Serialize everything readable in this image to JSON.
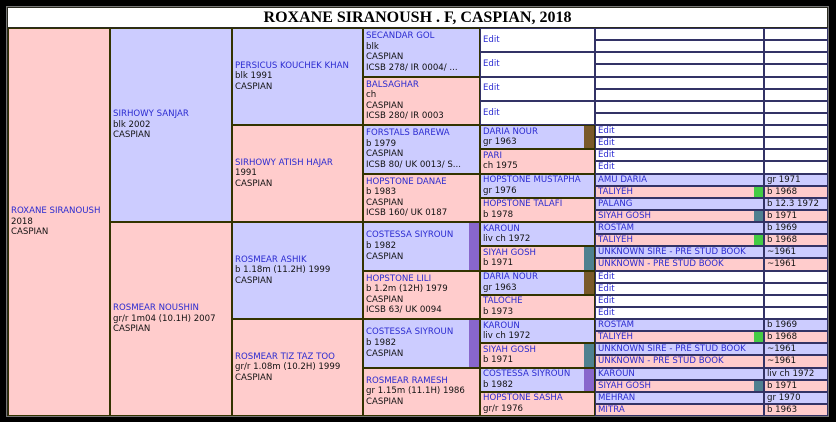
{
  "title": "ROXANE SIRANOUSH . F, CASPIAN, 2018",
  "colors": {
    "sire": "#ccccff",
    "dam": "#ffcccc",
    "name_text": "#2a2ad0",
    "dup_purple": "#8866cc",
    "dup_brown": "#7a5a2a",
    "dup_teal": "#4f8090",
    "dup_green": "#44cc44"
  },
  "edit_label": "Edit",
  "gen1": [
    {
      "name": "ROXANE SIRANOUSH",
      "lines": [
        "2018",
        "CASPIAN"
      ]
    }
  ],
  "gen2": [
    {
      "name": "SIRHOWY SANJAR",
      "lines": [
        "blk 2002",
        "CASPIAN"
      ]
    },
    {
      "name": "ROSMEAR NOUSHIN",
      "lines": [
        "gr/r 1m04 (10.1H) 2007",
        "CASPIAN"
      ]
    }
  ],
  "gen3": [
    {
      "name": "PERSICUS KOUCHEK KHAN",
      "lines": [
        "blk 1991",
        "CASPIAN"
      ]
    },
    {
      "name": "SIRHOWY ATISH HAJAR",
      "lines": [
        "1991",
        "CASPIAN"
      ]
    },
    {
      "name": "ROSMEAR ASHIK",
      "lines": [
        "b 1.18m (11.2H) 1999",
        "CASPIAN"
      ]
    },
    {
      "name": "ROSMEAR TIZ TAZ TOO",
      "lines": [
        "gr/r 1.08m (10.2H) 1999",
        "CASPIAN"
      ]
    }
  ],
  "gen4": [
    {
      "name": "SECANDAR GOL",
      "lines": [
        "blk",
        "CASPIAN",
        "ICSB 278/ IR 0004/ ..."
      ]
    },
    {
      "name": "BALSAGHAR",
      "lines": [
        "ch",
        "CASPIAN",
        "ICSB 280/ IR 0003"
      ]
    },
    {
      "name": "FORSTALS BAREWA",
      "lines": [
        "b 1979",
        "CASPIAN",
        "ICSB 80/ UK 0013/ S..."
      ]
    },
    {
      "name": "HOPSTONE DANAE",
      "lines": [
        "b 1983",
        "CASPIAN",
        "ICSB 160/ UK 0187"
      ]
    },
    {
      "name": "COSTESSA SIYROUN",
      "lines": [
        "b 1982",
        "CASPIAN"
      ],
      "dup": "#8866cc"
    },
    {
      "name": "HOPSTONE LILI",
      "lines": [
        "b 1.2m (12H) 1979",
        "CASPIAN",
        "ICSB 63/ UK 0094"
      ]
    },
    {
      "name": "COSTESSA SIYROUN",
      "lines": [
        "b 1982",
        "CASPIAN"
      ],
      "dup": "#8866cc"
    },
    {
      "name": "ROSMEAR RAMESH",
      "lines": [
        "gr 1.15m (11.1H) 1986",
        "CASPIAN"
      ]
    }
  ],
  "gen5": [
    {
      "edit": true
    },
    {
      "edit": true
    },
    {
      "edit": true
    },
    {
      "edit": true
    },
    {
      "name": "DARIA NOUR",
      "lines": [
        "gr 1963"
      ],
      "dup": "#7a5a2a"
    },
    {
      "name": "PARI",
      "lines": [
        "ch 1975"
      ]
    },
    {
      "name": "HOPSTONE MUSTAPHA",
      "lines": [
        "gr 1976"
      ]
    },
    {
      "name": "HOPSTONE TALAFI",
      "lines": [
        "b 1978"
      ]
    },
    {
      "name": "KAROUN",
      "lines": [
        "liv ch 1972"
      ]
    },
    {
      "name": "SIYAH GOSH",
      "lines": [
        "b 1971"
      ],
      "dup": "#4f8090"
    },
    {
      "name": "DARIA NOUR",
      "lines": [
        "gr 1963"
      ],
      "dup": "#7a5a2a"
    },
    {
      "name": "TALOCHE",
      "lines": [
        "b 1973"
      ]
    },
    {
      "name": "KAROUN",
      "lines": [
        "liv ch 1972"
      ]
    },
    {
      "name": "SIYAH GOSH",
      "lines": [
        "b 1971"
      ],
      "dup": "#4f8090"
    },
    {
      "name": "COSTESSA SIYROUN",
      "lines": [
        "b 1982"
      ],
      "dup": "#8866cc"
    },
    {
      "name": "HOPSTONE SASHA",
      "lines": [
        "gr/r 1976"
      ]
    }
  ],
  "gen6": [
    {
      "empty": true
    },
    {
      "empty": true
    },
    {
      "empty": true
    },
    {
      "empty": true
    },
    {
      "empty": true
    },
    {
      "empty": true
    },
    {
      "empty": true
    },
    {
      "empty": true
    },
    {
      "edit": true
    },
    {
      "edit": true
    },
    {
      "edit": true
    },
    {
      "edit": true
    },
    {
      "name": "AMU DARIA",
      "date": "gr 1971"
    },
    {
      "name": "TALIYEH",
      "date": "b 1968",
      "dup": "#44cc44"
    },
    {
      "name": "PALANG",
      "date": "b 12.3 1972"
    },
    {
      "name": "SIYAH GOSH",
      "date": "b 1971",
      "dup": "#4f8090"
    },
    {
      "name": "ROSTAM",
      "date": "b 1969"
    },
    {
      "name": "TALIYEH",
      "date": "b 1968",
      "dup": "#44cc44"
    },
    {
      "name": "UNKNOWN SIRE - PRE STUD BOOK",
      "date": "~1961"
    },
    {
      "name": "UNKNOWN - PRE STUD BOOK",
      "date": "~1961"
    },
    {
      "edit": true
    },
    {
      "edit": true
    },
    {
      "edit": true
    },
    {
      "edit": true
    },
    {
      "name": "ROSTAM",
      "date": "b 1969"
    },
    {
      "name": "TALIYEH",
      "date": "b 1968",
      "dup": "#44cc44"
    },
    {
      "name": "UNKNOWN SIRE - PRE STUD BOOK",
      "date": "~1961"
    },
    {
      "name": "UNKNOWN - PRE STUD BOOK",
      "date": "~1961"
    },
    {
      "name": "KAROUN",
      "date": "liv ch 1972"
    },
    {
      "name": "SIYAH GOSH",
      "date": "b 1971",
      "dup": "#4f8090"
    },
    {
      "name": "MEHRAN",
      "date": "gr 1970"
    },
    {
      "name": "MITRA",
      "date": "b 1963"
    }
  ]
}
